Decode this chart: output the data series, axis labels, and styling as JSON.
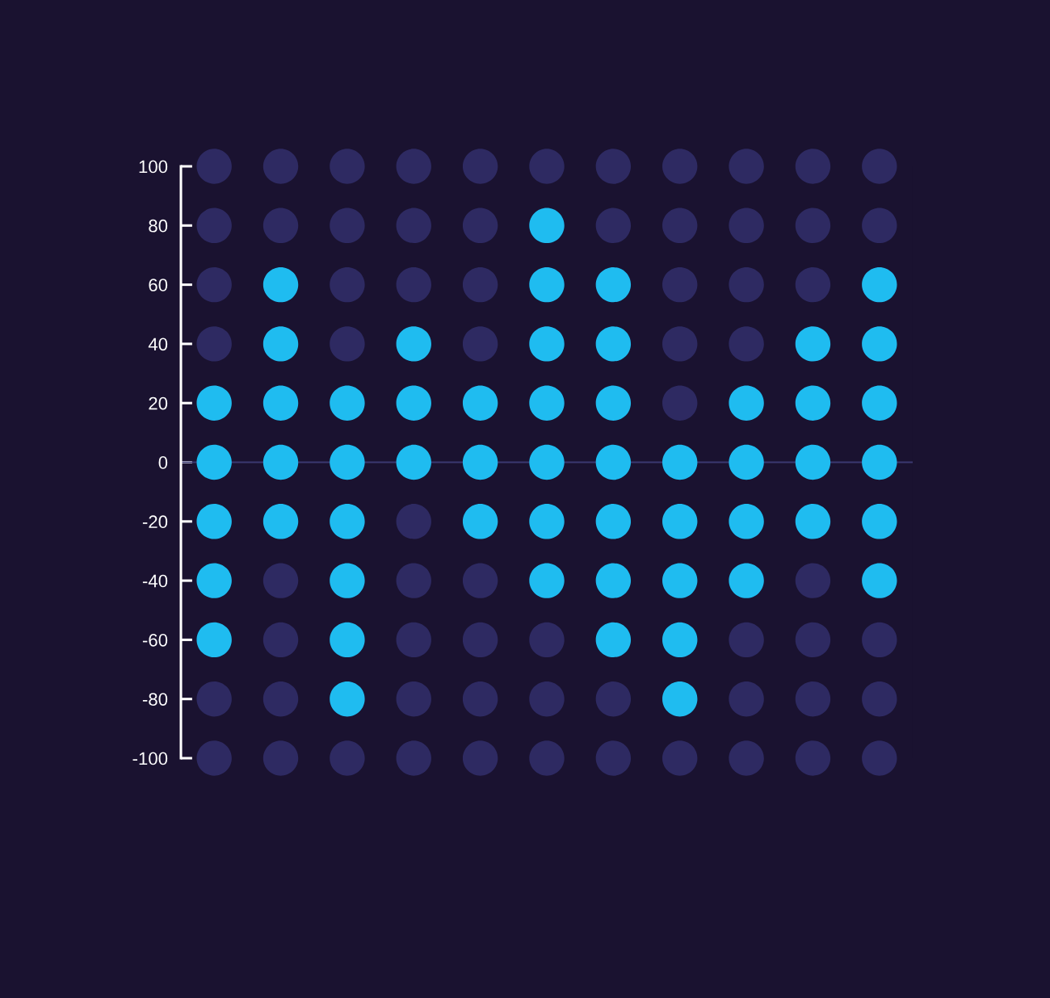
{
  "chart_data": {
    "type": "scatter",
    "categories": [
      null,
      null,
      null,
      null,
      null,
      null,
      null,
      null,
      null,
      null,
      null
    ],
    "marker": "circle",
    "series": [
      {
        "color": "#2e2a62",
        "values": [
          100,
          100,
          100,
          100,
          100,
          100,
          100,
          100,
          100,
          100,
          100
        ]
      },
      {
        "color": "#2e2a62",
        "values": [
          80,
          80,
          80,
          80,
          80,
          null,
          80,
          80,
          80,
          80,
          80
        ]
      },
      {
        "color": "#1fbcf0",
        "values": [
          null,
          null,
          null,
          null,
          null,
          80,
          null,
          null,
          null,
          null,
          null
        ]
      },
      {
        "color": "#2e2a62",
        "values": [
          60,
          null,
          60,
          60,
          60,
          null,
          null,
          60,
          60,
          60,
          null
        ]
      },
      {
        "color": "#1fbcf0",
        "values": [
          null,
          60,
          null,
          null,
          null,
          60,
          60,
          null,
          null,
          null,
          60
        ]
      },
      {
        "color": "#2e2a62",
        "values": [
          40,
          null,
          40,
          null,
          40,
          null,
          null,
          40,
          40,
          null,
          null
        ]
      },
      {
        "color": "#1fbcf0",
        "values": [
          null,
          40,
          null,
          40,
          null,
          40,
          40,
          null,
          null,
          40,
          40
        ]
      },
      {
        "color": "#2e2a62",
        "values": [
          null,
          null,
          null,
          null,
          null,
          null,
          null,
          20,
          null,
          null,
          null
        ]
      },
      {
        "color": "#1fbcf0",
        "values": [
          20,
          20,
          20,
          20,
          20,
          20,
          20,
          null,
          20,
          20,
          20
        ]
      },
      {
        "color": "#1fbcf0",
        "values": [
          0,
          0,
          0,
          0,
          0,
          0,
          0,
          0,
          0,
          0,
          0
        ]
      },
      {
        "color": "#2e2a62",
        "values": [
          null,
          null,
          null,
          -20,
          null,
          null,
          null,
          null,
          null,
          null,
          null
        ]
      },
      {
        "color": "#1fbcf0",
        "values": [
          -20,
          -20,
          -20,
          null,
          -20,
          -20,
          -20,
          -20,
          -20,
          -20,
          -20
        ]
      },
      {
        "color": "#2e2a62",
        "values": [
          null,
          -40,
          null,
          -40,
          -40,
          null,
          null,
          null,
          null,
          -40,
          null
        ]
      },
      {
        "color": "#1fbcf0",
        "values": [
          -40,
          null,
          -40,
          null,
          null,
          -40,
          -40,
          -40,
          -40,
          null,
          -40
        ]
      },
      {
        "color": "#2e2a62",
        "values": [
          null,
          -60,
          null,
          -60,
          -60,
          -60,
          null,
          null,
          -60,
          -60,
          -60
        ]
      },
      {
        "color": "#1fbcf0",
        "values": [
          -60,
          null,
          -60,
          null,
          null,
          null,
          -60,
          -60,
          null,
          null,
          null
        ]
      },
      {
        "color": "#2e2a62",
        "values": [
          -80,
          -80,
          null,
          -80,
          -80,
          -80,
          -80,
          null,
          -80,
          -80,
          -80
        ]
      },
      {
        "color": "#1fbcf0",
        "values": [
          null,
          null,
          -80,
          null,
          null,
          null,
          null,
          -80,
          null,
          null,
          null
        ]
      },
      {
        "color": "#2e2a62",
        "values": [
          -100,
          -100,
          -100,
          -100,
          -100,
          -100,
          -100,
          -100,
          -100,
          -100,
          -100
        ]
      }
    ],
    "ylim": [
      -100,
      100
    ],
    "yticks": [
      -100,
      -80,
      -60,
      -40,
      -20,
      0,
      20,
      40,
      60,
      80,
      100
    ],
    "ref_lines": [
      {
        "axis": "y",
        "value": 0,
        "color": "#3b3970"
      }
    ],
    "tick_labels": "y"
  }
}
